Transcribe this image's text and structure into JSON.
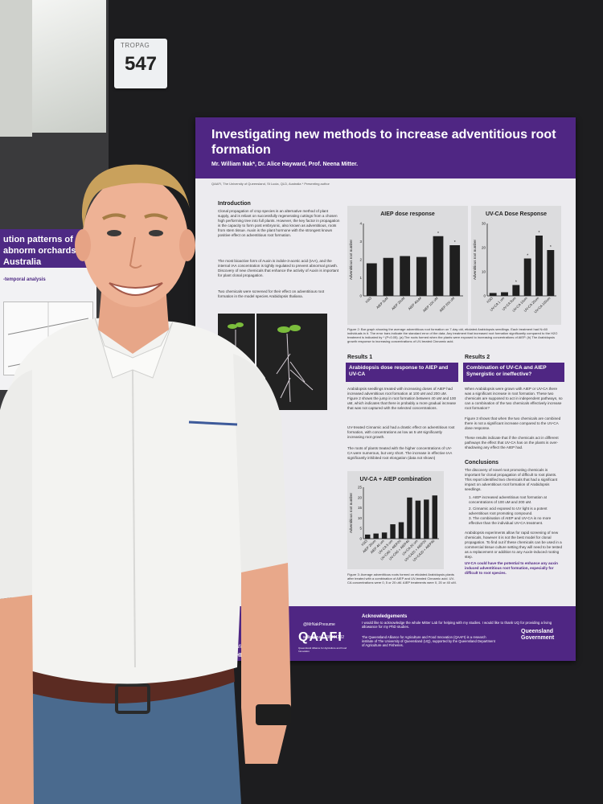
{
  "booth": {
    "tag_brand": "TROPAG",
    "tag_number": "547"
  },
  "left_poster": {
    "title": "ution patterns of abnorm orchards in Australia",
    "subtitle": "-temporal analysis"
  },
  "poster": {
    "title": "Investigating new methods to increase adventitious root formation",
    "authors": "Mr. William Nak*, Dr. Alice Hayward, Prof. Neena Mitter.",
    "affiliation": "QAAFI, The University of Queensland, St Lucia, QLD, Australia * Presenting author",
    "intro_heading": "Introduction",
    "intro_p1": "Clonal propagation of crop species is an alternative method of plant supply, and is reliant on successfully regenerating cuttings from a chosen high performing tree into full plants. However, the key factor in propagation is the capacity to form post embryonic, also known as adventitious, roots from stem tissue. Auxin is the plant hormone with the strongest known positive effect on adventitious root formation.",
    "intro_p2": "The most bioactive form of Auxin is indole-3-acetic acid (IAA), and the internal IAA concentration is tightly regulated to prevent abnormal growth. Discovery of new chemicals that enhance the activity of Auxin is important for plant clonal propagation.",
    "intro_p3": "Two chemicals were screened for their effect on adventitious root formation in the model species Arabidopsis thaliana.",
    "results1_heading": "Results 1",
    "results2_heading": "Results 2",
    "results1_box": "Arabidopsis dose response to AIEP and UV-CA",
    "results2_box": "Combination of UV-CA and AIEP Synergistic or ineffective?",
    "results1_text": "Arabidopsis seedlings treated with increasing doses of AIEP had increased adventitious root formation at 100 uM and 200 uM. Figure 2 shows the jump in root formation between 40 uM and 100 uM, which indicates that there is probably a more gradual increase that was not captured with the selected concentrations.",
    "results1_text2": "UV-treated Cinnamic acid had a drastic effect on adventitious root formation, with concentrations as low as 5 uM significantly increasing root growth.",
    "results1_text3": "The roots of plants treated with the higher concentrations of UV-CA were numerous, but very short. The increase in effective IAA significantly inhibited root elongation (data not shown)",
    "results2_text": "When Arabidopsis were grown with AIEP or UV-CA there was a significant increase in root formation. These two chemicals are supposed to act in independent pathways, so can a combination of the two chemicals effectively increase root formation?",
    "results2_text2": "Figure 3 shows that when the two chemicals are combined there is not a significant increase compared to the UV-CA dose response.",
    "results2_text3": "These results indicate that if the chemicals act in different pathways the effect that UV-CA has on the plants is over-shadowing any effect the AIEP had.",
    "conclusions_heading": "Conclusions",
    "conclusions_text": "The discovery of novel root promoting chemicals is important for clonal propagation of difficult to root plants. This report identified two chemicals that had a significant impact on adventitious root formation of Arabidopsis seedlings.",
    "conclusion_items": [
      "1. AIEP increased adventitious root formation at concentrations of 100 uM and 200 uM.",
      "2. Cinnamic acid exposed to UV light is a potent adventitious root promoting compound.",
      "3. The combination of AIEP and UV-CA is no more effective than the individual UV-CA treatment."
    ],
    "conclusions_text2": "Arabidopsis experiments allow for rapid screening of new chemicals, however it is not the best model for clonal propagation. To find out if these chemicals can be used in a commercial tissue culture setting they will need to be tested as a replacement or addition to any Auxin-induced rooting step.",
    "conclusions_bold": "UV-CA could have the potential to enhance any auxin induced adventitious root formation, especially for difficult to root species.",
    "fig1_caption": "with different amounts of the region where adventitious ies. (a) An Arabidopsis plant lis. (b) An Arabidopsis plant",
    "methods_fragments": [
      "noxie-5'-[2-(1H-indol-",
      "ined from Dr",
      "innamic Acid that",
      "V-CA).",
      "water and kept",
      "ted in 1.5 g/L MS",
      "in dark for 3 days to",
      "was replaced",
      "chemical treatment,",
      "ional 7 days.",
      "graphed and the",
      "re recorded."
    ],
    "fig2_caption": "Figure 2: Bar graph showing the average adventitious root formation on 7-day old, etiolated Arabidopsis seedlings. Each treatment had N=60 individuals in it. The error bars indicate the standard error of the data. Any treatment that increased root formation significantly compared to the H2O treatment is indicated by * (P<0.05). (a) The roots formed when the plants were exposed to increasing concentrations of AIEP. (b) The Arabidopsis growth response to increasing concentrations of UV-treated Cinnamic acid.",
    "fig3_caption": "Figure 3: Average adventitious roots formed on etiolated Arabidopsis plants after treated with a combination of AIEP and UV-treated Cinnamic acid. UV-CA concentrations were 0, 5 or 20 uM. AIEP treatments were 0, 20 or 40 uM.",
    "ack_heading": "Acknowledgements",
    "ack_text": "I would like to acknowledge the whole Mitter Lab for helping with my studies. I would like to thank UQ for providing a living allowance for my PhD studies.",
    "twitter": "@MrNakPresume",
    "linkedin": "william-nak-336361102",
    "email_fragment": ".au",
    "website_fragment": "qaafi.uq",
    "uq_fragment": "THE OF QU",
    "qaafi_logo": "QAAFI",
    "qaafi_sub": "Queensland Alliance for Agriculture and Food Innovation",
    "qaafi_desc": "The Queensland Alliance for Agriculture and Food Innovation (QAAFI) is a research institute of The University of Queensland (UQ), supported by the Queensland Department of Agriculture and Fisheries.",
    "qld_logo_top": "Queensland",
    "qld_logo_bottom": "Government"
  },
  "chart_data": [
    {
      "type": "bar",
      "title": "AIEP dose response",
      "ylabel": "Adventitious root number",
      "categories": [
        "H2O",
        "AIEP 5uM",
        "AIEP 20uM",
        "AIEP 40uM",
        "AIEP 100 uM",
        "AIEP 200 uM"
      ],
      "values": [
        1.8,
        2.1,
        2.2,
        2.15,
        3.3,
        2.8
      ],
      "significant": [
        false,
        false,
        false,
        false,
        true,
        true
      ],
      "ylim": [
        0,
        4
      ],
      "yticks": [
        0,
        1,
        2,
        3,
        4
      ],
      "colors": {
        "bar": "#1f1f1f",
        "background": "#f2f2f2"
      }
    },
    {
      "type": "bar",
      "title": "UV-CA Dose Response",
      "ylabel": "Adventitious root number",
      "categories": [
        "H2O",
        "UV-CA 1 um",
        "UV-CA 5um",
        "UV-CA 10um",
        "UV-CA 20um",
        "UV-CA 100um"
      ],
      "values": [
        1.2,
        1.5,
        4.5,
        15.5,
        25,
        19
      ],
      "significant": [
        false,
        false,
        true,
        true,
        true,
        true
      ],
      "ylim": [
        0,
        30
      ],
      "yticks": [
        0,
        10,
        20,
        30
      ],
      "colors": {
        "bar": "#1f1f1f",
        "background": "#f2f2f2"
      }
    },
    {
      "type": "bar",
      "title": "UV-CA + AIEP combination",
      "ylabel": "Adventitious root number",
      "categories": [
        "H2O",
        "AIEP 20um",
        "AIEP 40 um",
        "UV-CA 5 um",
        "UV-CA5 + AIEP20",
        "UV-CA5 + AIEP40",
        "UV-CA 20 um",
        "UV-CA20 + AIEP20",
        "UV-CA20 + AIEP40"
      ],
      "values": [
        2,
        2.5,
        3,
        7,
        8,
        20,
        18.5,
        19,
        21
      ],
      "ylim": [
        0,
        25
      ],
      "yticks": [
        0,
        5,
        10,
        15,
        20,
        25
      ],
      "colors": {
        "bar": "#1f1f1f",
        "background": "#f2f2f2"
      }
    }
  ]
}
